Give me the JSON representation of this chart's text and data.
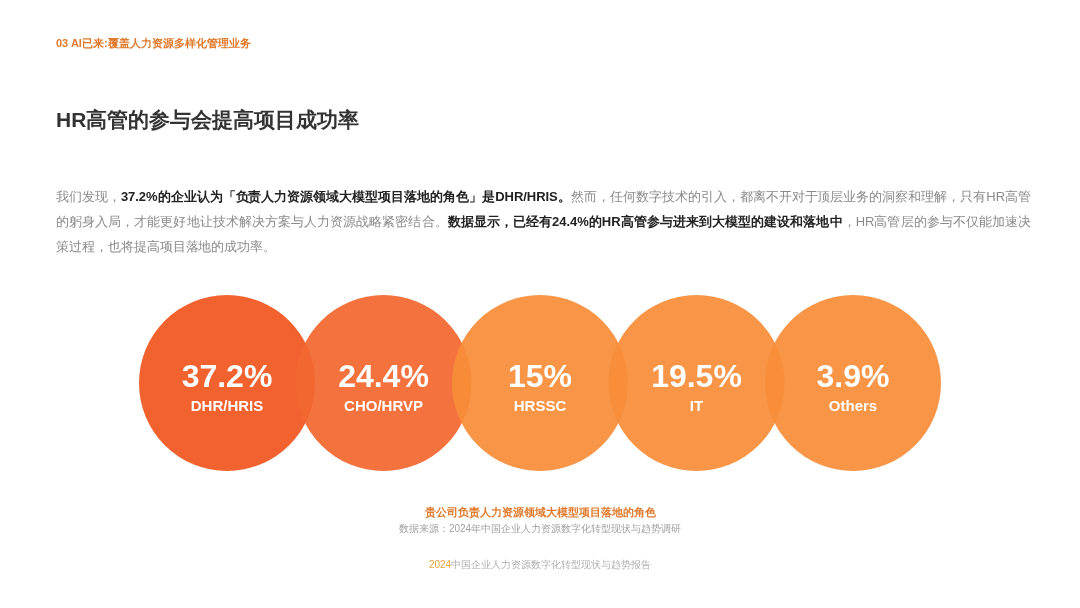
{
  "chart_data": {
    "type": "other",
    "title": "HR高管的参与会提高项目成功率",
    "subtitle": "贵公司负责人力资源领域大模型项目落地的角色",
    "categories": [
      "DHR/HRIS",
      "CHO/HRVP",
      "HRSSC",
      "IT",
      "Others"
    ],
    "values": [
      37.2,
      24.4,
      15,
      19.5,
      3.9
    ],
    "value_labels": [
      "37.2%",
      "24.4%",
      "15%",
      "19.5%",
      "3.9%"
    ],
    "colors": [
      "#f0561f",
      "#f2672f",
      "#f88d38",
      "#f88d38",
      "#f88d38"
    ],
    "annotations": [
      "03 AI已来:覆盖人力资源多样化管理业务",
      "我们发现，",
      "37.2%的企业认为「负责人力资源领域大模型项目落地的角色」是DHR/HRIS。",
      "然而，任何数字技术的引入，都离不开对于顶层业务的洞察和理解，只有HR高管的躬身入局，才能更好地让技术解决方案与人力资源战略紧密结合。",
      "数据显示，已经有24.4%的HR高管参与进来到大模型的建设和落地中",
      "，HR高管层的参与不仅能加速决策过程，也将提高项目落地的成功率。",
      "数据来源：2024年中国企业人力资源数字化转型现状与趋势调研",
      "2024",
      "中国企业人力资源数字化转型现状与趋势报告"
    ]
  }
}
